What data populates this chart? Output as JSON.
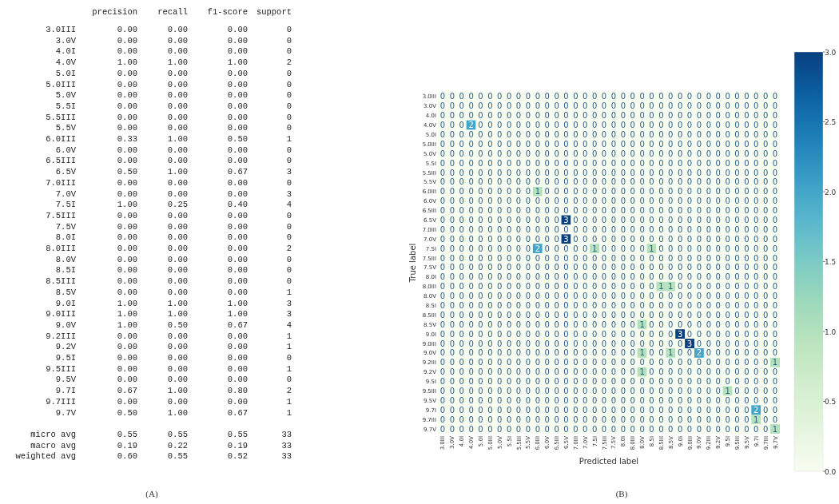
{
  "chart_data": [
    {
      "type": "heatmap",
      "categories": [
        "precision",
        "recall",
        "f1-score",
        "support"
      ],
      "y_categories": [
        "3.0III",
        "3.0V",
        "4.0I",
        "4.0V",
        "5.0I",
        "5.0III",
        "5.0V",
        "5.5I",
        "5.5III",
        "5.5V",
        "6.0III",
        "6.0V",
        "6.5III",
        "6.5V",
        "7.0III",
        "7.0V",
        "7.5I",
        "7.5III",
        "7.5V",
        "8.0I",
        "8.0III",
        "8.0V",
        "8.5I",
        "8.5III",
        "8.5V",
        "9.0I",
        "9.0III",
        "9.0V",
        "9.2III",
        "9.2V",
        "9.5I",
        "9.5III",
        "9.5V",
        "9.7I",
        "9.7III",
        "9.7V"
      ],
      "cells": [
        [
          0,
          0,
          0,
          0
        ],
        [
          0,
          0,
          0,
          0
        ],
        [
          0,
          0,
          0,
          0
        ],
        [
          1,
          1,
          1,
          2
        ],
        [
          0,
          0,
          0,
          0
        ],
        [
          0,
          0,
          0,
          0
        ],
        [
          0,
          0,
          0,
          0
        ],
        [
          0,
          0,
          0,
          0
        ],
        [
          0,
          0,
          0,
          0
        ],
        [
          0,
          0,
          0,
          0
        ],
        [
          0.33,
          1,
          0.5,
          1
        ],
        [
          0,
          0,
          0,
          0
        ],
        [
          0,
          0,
          0,
          0
        ],
        [
          0.5,
          1,
          0.67,
          3
        ],
        [
          0,
          0,
          0,
          0
        ],
        [
          0,
          0,
          0,
          3
        ],
        [
          1,
          0.25,
          0.4,
          4
        ],
        [
          0,
          0,
          0,
          0
        ],
        [
          0,
          0,
          0,
          0
        ],
        [
          0,
          0,
          0,
          0
        ],
        [
          0,
          0,
          0,
          2
        ],
        [
          0,
          0,
          0,
          0
        ],
        [
          0,
          0,
          0,
          0
        ],
        [
          0,
          0,
          0,
          0
        ],
        [
          0,
          0,
          0,
          1
        ],
        [
          1,
          1,
          1,
          3
        ],
        [
          1,
          1,
          1,
          3
        ],
        [
          1,
          0.5,
          0.67,
          4
        ],
        [
          0,
          0,
          0,
          1
        ],
        [
          0,
          0,
          0,
          1
        ],
        [
          0,
          0,
          0,
          0
        ],
        [
          0,
          0,
          0,
          1
        ],
        [
          0,
          0,
          0,
          0
        ],
        [
          0.67,
          1,
          0.8,
          2
        ],
        [
          0,
          0,
          0,
          1
        ],
        [
          0.5,
          1,
          0.67,
          1
        ]
      ],
      "cell_labels": [
        [
          "0.00",
          "0.00",
          "0.00",
          "0"
        ],
        [
          "0.00",
          "0.00",
          "0.00",
          "0"
        ],
        [
          "0.00",
          "0.00",
          "0.00",
          "0"
        ],
        [
          "1.00",
          "1.00",
          "1.00",
          "2"
        ],
        [
          "0.00",
          "0.00",
          "0.00",
          "0"
        ],
        [
          "0.00",
          "0.00",
          "0.00",
          "0"
        ],
        [
          "0.00",
          "0.00",
          "0.00",
          "0"
        ],
        [
          "0.00",
          "0.00",
          "0.00",
          "0"
        ],
        [
          "0.00",
          "0.00",
          "0.00",
          "0"
        ],
        [
          "0.00",
          "0.00",
          "0.00",
          "0"
        ],
        [
          "0.33",
          "1.00",
          "0.50",
          "1"
        ],
        [
          "0.00",
          "0.00",
          "0.00",
          "0"
        ],
        [
          "0.00",
          "0.00",
          "0.00",
          "0"
        ],
        [
          "0.50",
          "1.00",
          "0.67",
          "3"
        ],
        [
          "0.00",
          "0.00",
          "0.00",
          "0"
        ],
        [
          "0.00",
          "0.00",
          "0.00",
          "3"
        ],
        [
          "1.00",
          "0.25",
          "0.40",
          "4"
        ],
        [
          "0.00",
          "0.00",
          "0.00",
          "0"
        ],
        [
          "0.00",
          "0.00",
          "0.00",
          "0"
        ],
        [
          "0.00",
          "0.00",
          "0.00",
          "0"
        ],
        [
          "0.00",
          "0.00",
          "0.00",
          "2"
        ],
        [
          "0.00",
          "0.00",
          "0.00",
          "0"
        ],
        [
          "0.00",
          "0.00",
          "0.00",
          "0"
        ],
        [
          "0.00",
          "0.00",
          "0.00",
          "0"
        ],
        [
          "0.00",
          "0.00",
          "0.00",
          "1"
        ],
        [
          "1.00",
          "1.00",
          "1.00",
          "3"
        ],
        [
          "1.00",
          "1.00",
          "1.00",
          "3"
        ],
        [
          "1.00",
          "0.50",
          "0.67",
          "4"
        ],
        [
          "0.00",
          "0.00",
          "0.00",
          "1"
        ],
        [
          "0.00",
          "0.00",
          "0.00",
          "1"
        ],
        [
          "0.00",
          "0.00",
          "0.00",
          "0"
        ],
        [
          "0.00",
          "0.00",
          "0.00",
          "1"
        ],
        [
          "0.00",
          "0.00",
          "0.00",
          "0"
        ],
        [
          "0.67",
          "1.00",
          "0.80",
          "2"
        ],
        [
          "0.00",
          "0.00",
          "0.00",
          "1"
        ],
        [
          "0.50",
          "1.00",
          "0.67",
          "1"
        ]
      ],
      "annotations": [
        "(A)"
      ]
    },
    {
      "type": "heatmap",
      "categories": [
        null,
        null,
        null,
        null
      ],
      "y_categories": [
        "micro avg",
        "macro avg",
        "weighted avg"
      ],
      "cells": [
        [
          0.55,
          0.55,
          0.55,
          33
        ],
        [
          0.19,
          0.22,
          0.19,
          33
        ],
        [
          0.6,
          0.55,
          0.52,
          33
        ]
      ],
      "cell_labels": [
        [
          "0.55",
          "0.55",
          "0.55",
          "33"
        ],
        [
          "0.19",
          "0.22",
          "0.19",
          "33"
        ],
        [
          "0.60",
          "0.55",
          "0.52",
          "33"
        ]
      ]
    },
    {
      "type": "heatmap",
      "xlabel": "Predicted label",
      "ylabel": "True label",
      "data_labels": true,
      "categories": [
        "3.0III",
        "3.0V",
        "4.0I",
        "4.0V",
        "5.0I",
        "5.0III",
        "5.0V",
        "5.5I",
        "5.5III",
        "5.5V",
        "6.0III",
        "6.0V",
        "6.5III",
        "6.5V",
        "7.0III",
        "7.0V",
        "7.5I",
        "7.5III",
        "7.5V",
        "8.0I",
        "8.0III",
        "8.0V",
        "8.5I",
        "8.5III",
        "8.5V",
        "9.0I",
        "9.0III",
        "9.0V",
        "9.2III",
        "9.2V",
        "9.5I",
        "9.5III",
        "9.5V",
        "9.7I",
        "9.7III",
        "9.7V"
      ],
      "y_categories": [
        "3.0III",
        "3.0V",
        "4.0I",
        "4.0V",
        "5.0I",
        "5.0III",
        "5.0V",
        "5.5I",
        "5.5III",
        "5.5V",
        "6.0III",
        "6.0V",
        "6.5III",
        "6.5V",
        "7.0III",
        "7.0V",
        "7.5I",
        "7.5III",
        "7.5V",
        "8.0I",
        "8.0III",
        "8.0V",
        "8.5I",
        "8.5III",
        "8.5V",
        "9.0I",
        "9.0III",
        "9.0V",
        "9.2III",
        "9.2V",
        "9.5I",
        "9.5III",
        "9.5V",
        "9.7I",
        "9.7III",
        "9.7V"
      ],
      "cells": [
        [
          0,
          0,
          0,
          0,
          0,
          0,
          0,
          0,
          0,
          0,
          0,
          0,
          0,
          0,
          0,
          0,
          0,
          0,
          0,
          0,
          0,
          0,
          0,
          0,
          0,
          0,
          0,
          0,
          0,
          0,
          0,
          0,
          0,
          0,
          0,
          0
        ],
        [
          0,
          0,
          0,
          0,
          0,
          0,
          0,
          0,
          0,
          0,
          0,
          0,
          0,
          0,
          0,
          0,
          0,
          0,
          0,
          0,
          0,
          0,
          0,
          0,
          0,
          0,
          0,
          0,
          0,
          0,
          0,
          0,
          0,
          0,
          0,
          0
        ],
        [
          0,
          0,
          0,
          0,
          0,
          0,
          0,
          0,
          0,
          0,
          0,
          0,
          0,
          0,
          0,
          0,
          0,
          0,
          0,
          0,
          0,
          0,
          0,
          0,
          0,
          0,
          0,
          0,
          0,
          0,
          0,
          0,
          0,
          0,
          0,
          0
        ],
        [
          0,
          0,
          0,
          2,
          0,
          0,
          0,
          0,
          0,
          0,
          0,
          0,
          0,
          0,
          0,
          0,
          0,
          0,
          0,
          0,
          0,
          0,
          0,
          0,
          0,
          0,
          0,
          0,
          0,
          0,
          0,
          0,
          0,
          0,
          0,
          0
        ],
        [
          0,
          0,
          0,
          0,
          0,
          0,
          0,
          0,
          0,
          0,
          0,
          0,
          0,
          0,
          0,
          0,
          0,
          0,
          0,
          0,
          0,
          0,
          0,
          0,
          0,
          0,
          0,
          0,
          0,
          0,
          0,
          0,
          0,
          0,
          0,
          0
        ],
        [
          0,
          0,
          0,
          0,
          0,
          0,
          0,
          0,
          0,
          0,
          0,
          0,
          0,
          0,
          0,
          0,
          0,
          0,
          0,
          0,
          0,
          0,
          0,
          0,
          0,
          0,
          0,
          0,
          0,
          0,
          0,
          0,
          0,
          0,
          0,
          0
        ],
        [
          0,
          0,
          0,
          0,
          0,
          0,
          0,
          0,
          0,
          0,
          0,
          0,
          0,
          0,
          0,
          0,
          0,
          0,
          0,
          0,
          0,
          0,
          0,
          0,
          0,
          0,
          0,
          0,
          0,
          0,
          0,
          0,
          0,
          0,
          0,
          0
        ],
        [
          0,
          0,
          0,
          0,
          0,
          0,
          0,
          0,
          0,
          0,
          0,
          0,
          0,
          0,
          0,
          0,
          0,
          0,
          0,
          0,
          0,
          0,
          0,
          0,
          0,
          0,
          0,
          0,
          0,
          0,
          0,
          0,
          0,
          0,
          0,
          0
        ],
        [
          0,
          0,
          0,
          0,
          0,
          0,
          0,
          0,
          0,
          0,
          0,
          0,
          0,
          0,
          0,
          0,
          0,
          0,
          0,
          0,
          0,
          0,
          0,
          0,
          0,
          0,
          0,
          0,
          0,
          0,
          0,
          0,
          0,
          0,
          0,
          0
        ],
        [
          0,
          0,
          0,
          0,
          0,
          0,
          0,
          0,
          0,
          0,
          0,
          0,
          0,
          0,
          0,
          0,
          0,
          0,
          0,
          0,
          0,
          0,
          0,
          0,
          0,
          0,
          0,
          0,
          0,
          0,
          0,
          0,
          0,
          0,
          0,
          0
        ],
        [
          0,
          0,
          0,
          0,
          0,
          0,
          0,
          0,
          0,
          0,
          1,
          0,
          0,
          0,
          0,
          0,
          0,
          0,
          0,
          0,
          0,
          0,
          0,
          0,
          0,
          0,
          0,
          0,
          0,
          0,
          0,
          0,
          0,
          0,
          0,
          0
        ],
        [
          0,
          0,
          0,
          0,
          0,
          0,
          0,
          0,
          0,
          0,
          0,
          0,
          0,
          0,
          0,
          0,
          0,
          0,
          0,
          0,
          0,
          0,
          0,
          0,
          0,
          0,
          0,
          0,
          0,
          0,
          0,
          0,
          0,
          0,
          0,
          0
        ],
        [
          0,
          0,
          0,
          0,
          0,
          0,
          0,
          0,
          0,
          0,
          0,
          0,
          0,
          0,
          0,
          0,
          0,
          0,
          0,
          0,
          0,
          0,
          0,
          0,
          0,
          0,
          0,
          0,
          0,
          0,
          0,
          0,
          0,
          0,
          0,
          0
        ],
        [
          0,
          0,
          0,
          0,
          0,
          0,
          0,
          0,
          0,
          0,
          0,
          0,
          0,
          3,
          0,
          0,
          0,
          0,
          0,
          0,
          0,
          0,
          0,
          0,
          0,
          0,
          0,
          0,
          0,
          0,
          0,
          0,
          0,
          0,
          0,
          0
        ],
        [
          0,
          0,
          0,
          0,
          0,
          0,
          0,
          0,
          0,
          0,
          0,
          0,
          0,
          0,
          0,
          0,
          0,
          0,
          0,
          0,
          0,
          0,
          0,
          0,
          0,
          0,
          0,
          0,
          0,
          0,
          0,
          0,
          0,
          0,
          0,
          0
        ],
        [
          0,
          0,
          0,
          0,
          0,
          0,
          0,
          0,
          0,
          0,
          0,
          0,
          0,
          3,
          0,
          0,
          0,
          0,
          0,
          0,
          0,
          0,
          0,
          0,
          0,
          0,
          0,
          0,
          0,
          0,
          0,
          0,
          0,
          0,
          0,
          0
        ],
        [
          0,
          0,
          0,
          0,
          0,
          0,
          0,
          0,
          0,
          0,
          2,
          0,
          0,
          0,
          0,
          0,
          1,
          0,
          0,
          0,
          0,
          0,
          1,
          0,
          0,
          0,
          0,
          0,
          0,
          0,
          0,
          0,
          0,
          0,
          0,
          0
        ],
        [
          0,
          0,
          0,
          0,
          0,
          0,
          0,
          0,
          0,
          0,
          0,
          0,
          0,
          0,
          0,
          0,
          0,
          0,
          0,
          0,
          0,
          0,
          0,
          0,
          0,
          0,
          0,
          0,
          0,
          0,
          0,
          0,
          0,
          0,
          0,
          0
        ],
        [
          0,
          0,
          0,
          0,
          0,
          0,
          0,
          0,
          0,
          0,
          0,
          0,
          0,
          0,
          0,
          0,
          0,
          0,
          0,
          0,
          0,
          0,
          0,
          0,
          0,
          0,
          0,
          0,
          0,
          0,
          0,
          0,
          0,
          0,
          0,
          0
        ],
        [
          0,
          0,
          0,
          0,
          0,
          0,
          0,
          0,
          0,
          0,
          0,
          0,
          0,
          0,
          0,
          0,
          0,
          0,
          0,
          0,
          0,
          0,
          0,
          0,
          0,
          0,
          0,
          0,
          0,
          0,
          0,
          0,
          0,
          0,
          0,
          0
        ],
        [
          0,
          0,
          0,
          0,
          0,
          0,
          0,
          0,
          0,
          0,
          0,
          0,
          0,
          0,
          0,
          0,
          0,
          0,
          0,
          0,
          0,
          0,
          0,
          1,
          1,
          0,
          0,
          0,
          0,
          0,
          0,
          0,
          0,
          0,
          0,
          0
        ],
        [
          0,
          0,
          0,
          0,
          0,
          0,
          0,
          0,
          0,
          0,
          0,
          0,
          0,
          0,
          0,
          0,
          0,
          0,
          0,
          0,
          0,
          0,
          0,
          0,
          0,
          0,
          0,
          0,
          0,
          0,
          0,
          0,
          0,
          0,
          0,
          0
        ],
        [
          0,
          0,
          0,
          0,
          0,
          0,
          0,
          0,
          0,
          0,
          0,
          0,
          0,
          0,
          0,
          0,
          0,
          0,
          0,
          0,
          0,
          0,
          0,
          0,
          0,
          0,
          0,
          0,
          0,
          0,
          0,
          0,
          0,
          0,
          0,
          0
        ],
        [
          0,
          0,
          0,
          0,
          0,
          0,
          0,
          0,
          0,
          0,
          0,
          0,
          0,
          0,
          0,
          0,
          0,
          0,
          0,
          0,
          0,
          0,
          0,
          0,
          0,
          0,
          0,
          0,
          0,
          0,
          0,
          0,
          0,
          0,
          0,
          0
        ],
        [
          0,
          0,
          0,
          0,
          0,
          0,
          0,
          0,
          0,
          0,
          0,
          0,
          0,
          0,
          0,
          0,
          0,
          0,
          0,
          0,
          0,
          1,
          0,
          0,
          0,
          0,
          0,
          0,
          0,
          0,
          0,
          0,
          0,
          0,
          0,
          0
        ],
        [
          0,
          0,
          0,
          0,
          0,
          0,
          0,
          0,
          0,
          0,
          0,
          0,
          0,
          0,
          0,
          0,
          0,
          0,
          0,
          0,
          0,
          0,
          0,
          0,
          0,
          3,
          0,
          0,
          0,
          0,
          0,
          0,
          0,
          0,
          0,
          0
        ],
        [
          0,
          0,
          0,
          0,
          0,
          0,
          0,
          0,
          0,
          0,
          0,
          0,
          0,
          0,
          0,
          0,
          0,
          0,
          0,
          0,
          0,
          0,
          0,
          0,
          0,
          0,
          3,
          0,
          0,
          0,
          0,
          0,
          0,
          0,
          0,
          0
        ],
        [
          0,
          0,
          0,
          0,
          0,
          0,
          0,
          0,
          0,
          0,
          0,
          0,
          0,
          0,
          0,
          0,
          0,
          0,
          0,
          0,
          0,
          1,
          0,
          0,
          1,
          0,
          0,
          2,
          0,
          0,
          0,
          0,
          0,
          0,
          0,
          0
        ],
        [
          0,
          0,
          0,
          0,
          0,
          0,
          0,
          0,
          0,
          0,
          0,
          0,
          0,
          0,
          0,
          0,
          0,
          0,
          0,
          0,
          0,
          0,
          0,
          0,
          0,
          0,
          0,
          0,
          0,
          0,
          0,
          0,
          0,
          0,
          0,
          1
        ],
        [
          0,
          0,
          0,
          0,
          0,
          0,
          0,
          0,
          0,
          0,
          0,
          0,
          0,
          0,
          0,
          0,
          0,
          0,
          0,
          0,
          0,
          1,
          0,
          0,
          0,
          0,
          0,
          0,
          0,
          0,
          0,
          0,
          0,
          0,
          0,
          0
        ],
        [
          0,
          0,
          0,
          0,
          0,
          0,
          0,
          0,
          0,
          0,
          0,
          0,
          0,
          0,
          0,
          0,
          0,
          0,
          0,
          0,
          0,
          0,
          0,
          0,
          0,
          0,
          0,
          0,
          0,
          0,
          0,
          0,
          0,
          0,
          0,
          0
        ],
        [
          0,
          0,
          0,
          0,
          0,
          0,
          0,
          0,
          0,
          0,
          0,
          0,
          0,
          0,
          0,
          0,
          0,
          0,
          0,
          0,
          0,
          0,
          0,
          0,
          0,
          0,
          0,
          0,
          0,
          0,
          1,
          0,
          0,
          0,
          0,
          0
        ],
        [
          0,
          0,
          0,
          0,
          0,
          0,
          0,
          0,
          0,
          0,
          0,
          0,
          0,
          0,
          0,
          0,
          0,
          0,
          0,
          0,
          0,
          0,
          0,
          0,
          0,
          0,
          0,
          0,
          0,
          0,
          0,
          0,
          0,
          0,
          0,
          0
        ],
        [
          0,
          0,
          0,
          0,
          0,
          0,
          0,
          0,
          0,
          0,
          0,
          0,
          0,
          0,
          0,
          0,
          0,
          0,
          0,
          0,
          0,
          0,
          0,
          0,
          0,
          0,
          0,
          0,
          0,
          0,
          0,
          0,
          0,
          2,
          0,
          0
        ],
        [
          0,
          0,
          0,
          0,
          0,
          0,
          0,
          0,
          0,
          0,
          0,
          0,
          0,
          0,
          0,
          0,
          0,
          0,
          0,
          0,
          0,
          0,
          0,
          0,
          0,
          0,
          0,
          0,
          0,
          0,
          0,
          0,
          0,
          1,
          0,
          0
        ],
        [
          0,
          0,
          0,
          0,
          0,
          0,
          0,
          0,
          0,
          0,
          0,
          0,
          0,
          0,
          0,
          0,
          0,
          0,
          0,
          0,
          0,
          0,
          0,
          0,
          0,
          0,
          0,
          0,
          0,
          0,
          0,
          0,
          0,
          0,
          0,
          1
        ]
      ],
      "clim": [
        0,
        3
      ],
      "cticks": [
        {
          "value": 0,
          "label": "0.0"
        },
        {
          "value": 0.5,
          "label": "0.5"
        },
        {
          "value": 1,
          "label": "1.0"
        },
        {
          "value": 1.5,
          "label": "1.5"
        },
        {
          "value": 2,
          "label": "2.0"
        },
        {
          "value": 2.5,
          "label": "2.5"
        },
        {
          "value": 3,
          "label": "3.0"
        }
      ],
      "annotations": [
        "(B)"
      ]
    }
  ]
}
